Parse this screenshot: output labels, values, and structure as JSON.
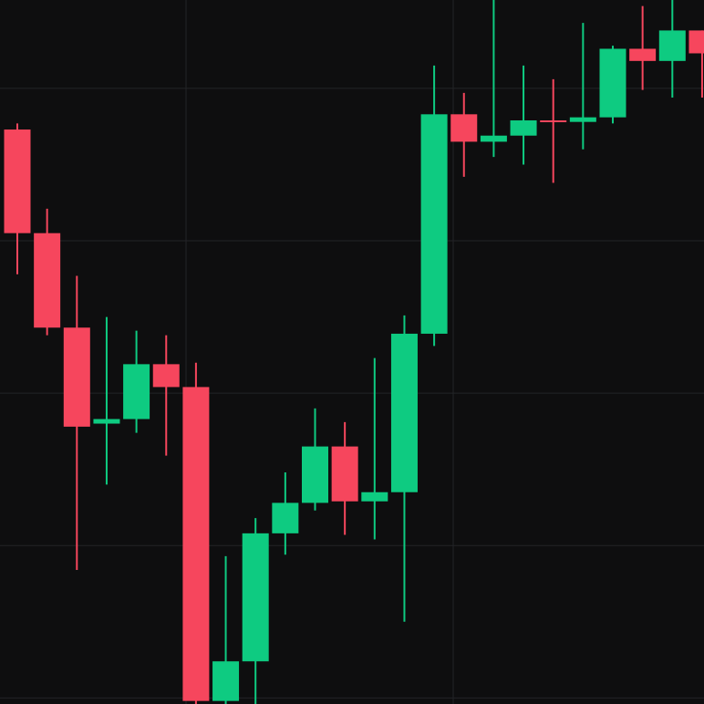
{
  "chart_data": {
    "type": "candlestick",
    "categories": [
      null,
      null,
      null,
      null,
      null,
      null,
      null,
      null,
      null,
      null,
      null,
      null,
      null,
      null,
      null,
      null,
      null,
      null,
      null,
      null,
      null,
      null,
      null,
      null
    ],
    "open": [
      37.3,
      30.5,
      24.3,
      18.0,
      18.3,
      21.9,
      20.4,
      -0.2,
      2.4,
      10.8,
      12.8,
      16.5,
      12.9,
      13.5,
      23.9,
      38.3,
      36.5,
      36.9,
      37.9,
      37.8,
      38.1,
      42.6,
      41.8,
      43.8
    ],
    "high": [
      37.7,
      32.1,
      27.7,
      25.0,
      24.1,
      23.8,
      22.0,
      9.3,
      11.8,
      14.8,
      19.0,
      18.1,
      22.3,
      25.1,
      41.5,
      39.7,
      45.8,
      41.5,
      40.6,
      44.3,
      42.8,
      45.4,
      45.8,
      43.8
    ],
    "low": [
      27.8,
      23.8,
      8.4,
      14.0,
      17.4,
      15.9,
      -0.4,
      -0.4,
      -0.4,
      9.4,
      12.3,
      10.7,
      10.4,
      5.0,
      23.1,
      34.2,
      35.5,
      35.0,
      33.8,
      36.0,
      37.7,
      39.9,
      39.4,
      39.4
    ],
    "close": [
      30.5,
      24.3,
      17.8,
      18.3,
      21.9,
      20.4,
      -0.2,
      2.4,
      10.8,
      12.8,
      16.5,
      12.9,
      13.5,
      23.9,
      38.3,
      36.5,
      36.9,
      37.9,
      37.8,
      38.1,
      42.6,
      41.8,
      43.8,
      42.3
    ],
    "up_color": "#0ecb81",
    "down_color": "#f6465d",
    "ylim": [
      -0.4,
      45.8
    ],
    "yticks": [
      0,
      10,
      20,
      30,
      40
    ],
    "grid": true
  }
}
